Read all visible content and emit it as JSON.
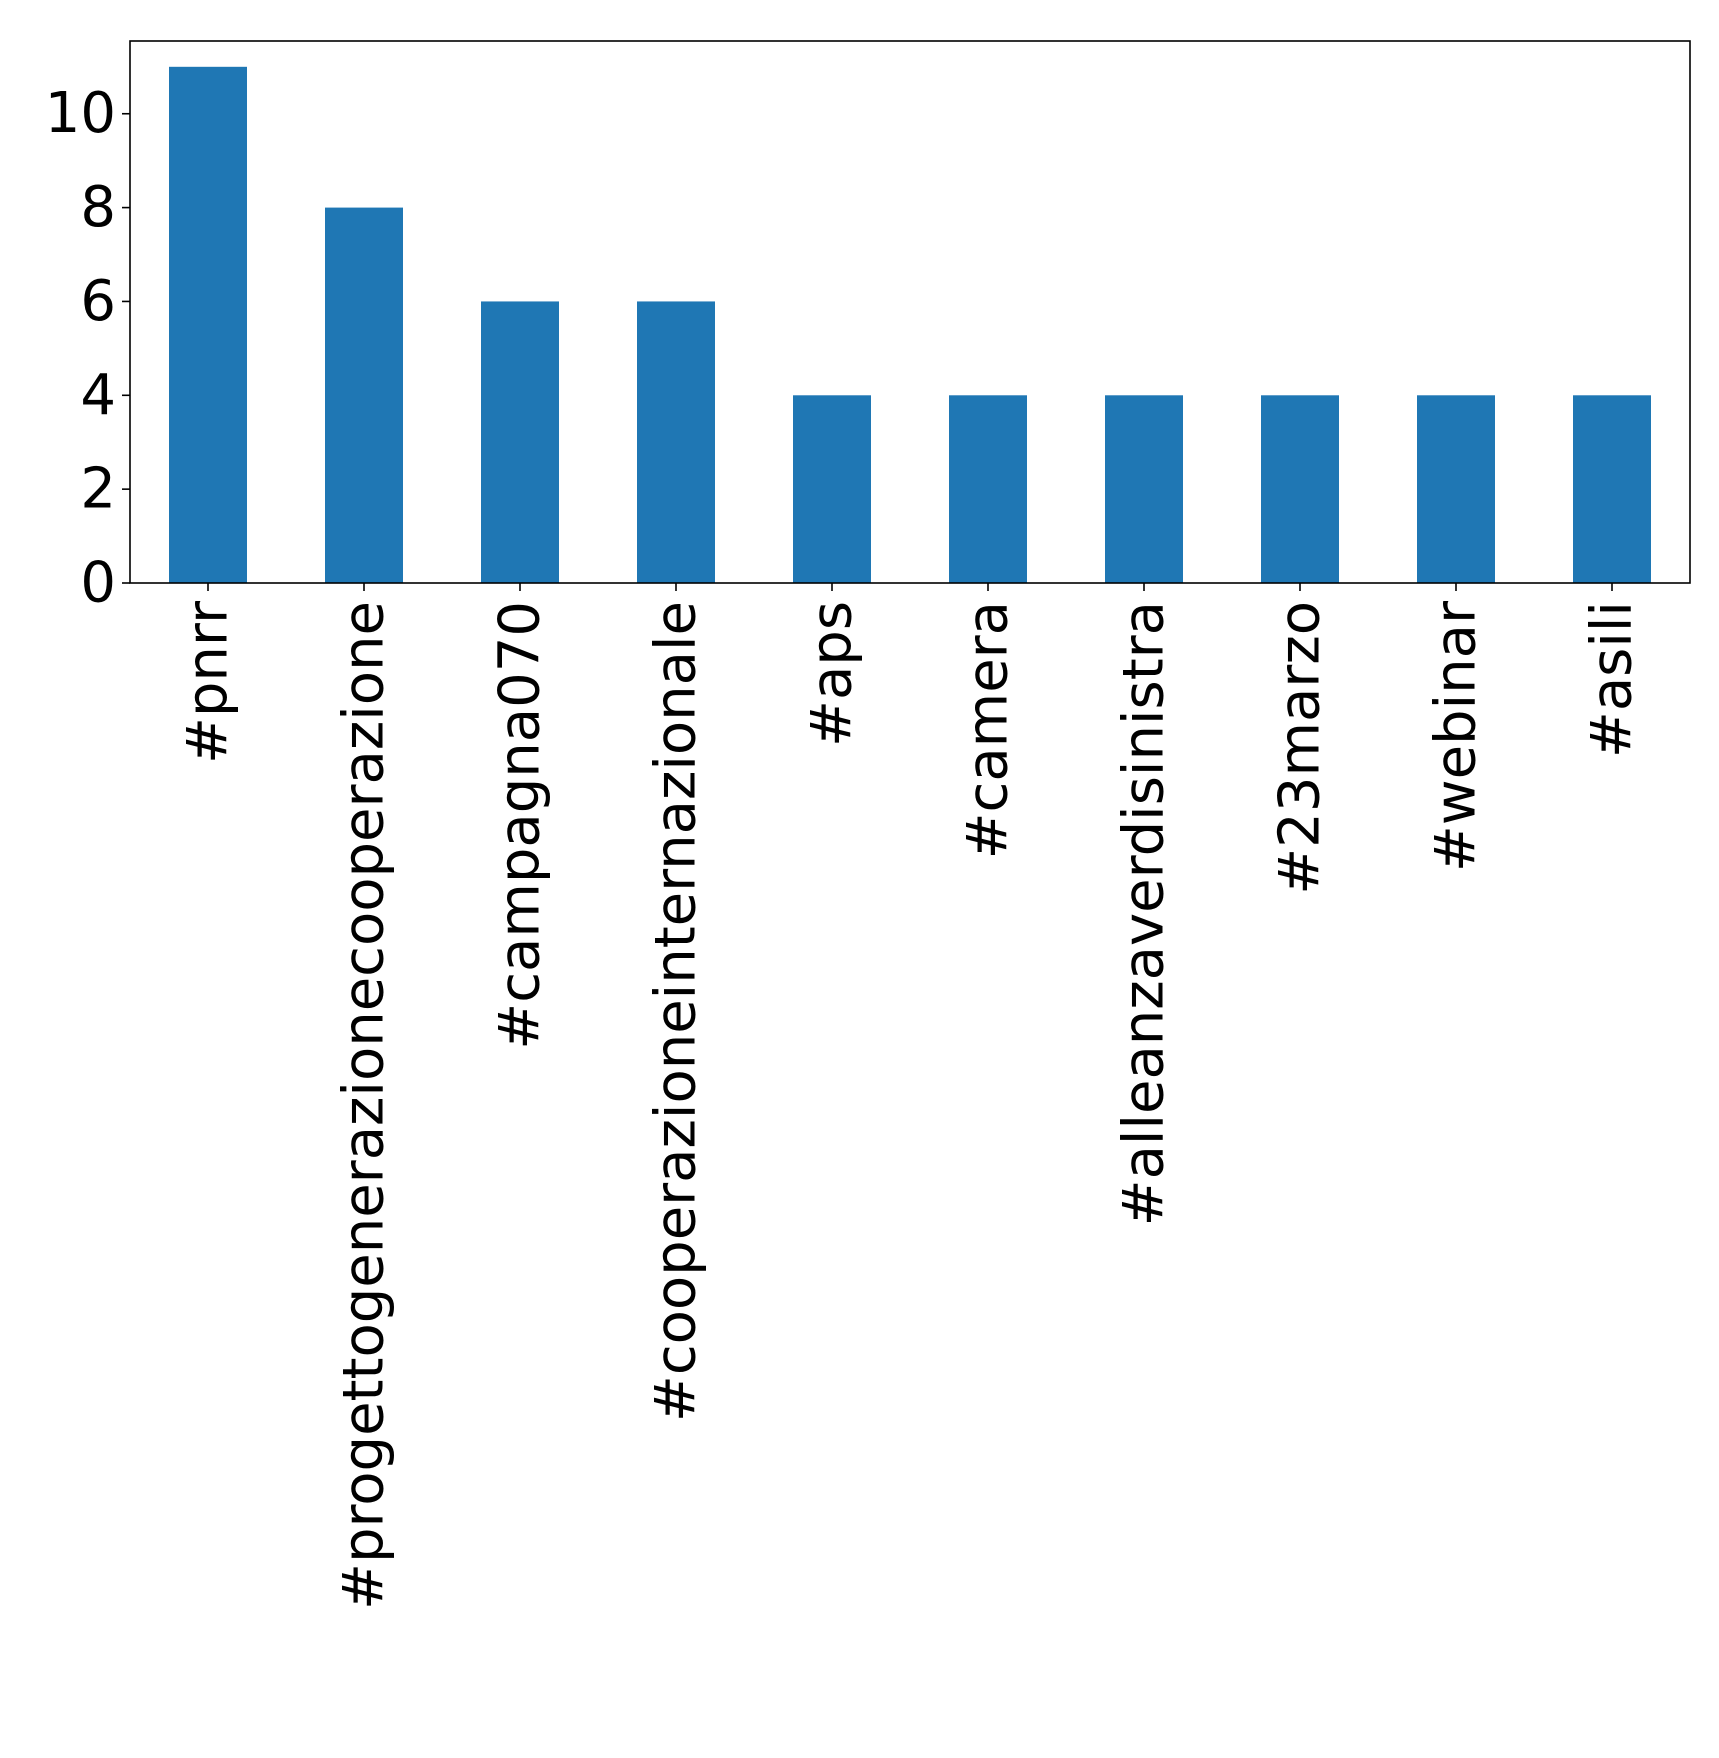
{
  "chart_data": {
    "type": "bar",
    "title": "",
    "xlabel": "",
    "ylabel": "",
    "categories": [
      "#pnrr",
      "#progettogenerazionecooperazione",
      "#campagna070",
      "#cooperazioneinternazionale",
      "#aps",
      "#camera",
      "#alleanzaverdisinistra",
      "#23marzo",
      "#webinar",
      "#asili"
    ],
    "values": [
      11,
      8,
      6,
      6,
      4,
      4,
      4,
      4,
      4,
      4
    ],
    "ylim": [
      0,
      11.55
    ],
    "yticks": [
      0,
      2,
      4,
      6,
      8,
      10
    ],
    "ytick_labels": [
      "0",
      "2",
      "4",
      "6",
      "8",
      "10"
    ],
    "bar_color": "#1f77b4",
    "grid": false,
    "legend": "none",
    "x_tick_rotation": "vertical"
  }
}
